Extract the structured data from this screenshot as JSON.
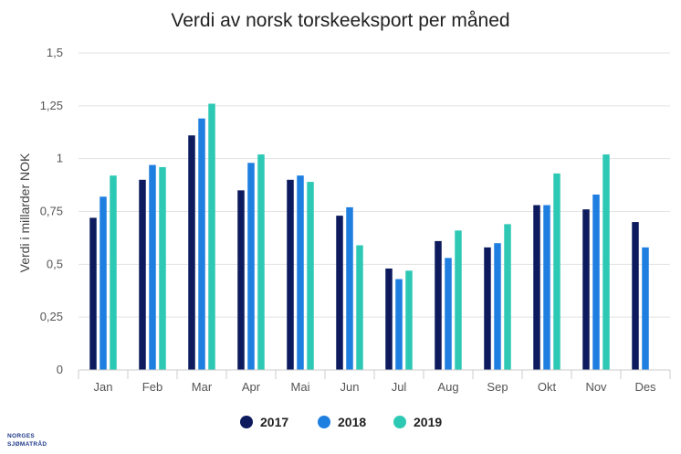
{
  "chart_data": {
    "type": "bar",
    "title": "Verdi av norsk torskeeksport per måned",
    "xlabel": "",
    "ylabel": "Verdi i millarder NOK",
    "ylim": [
      0,
      1.5
    ],
    "yticks": [
      0,
      0.25,
      0.5,
      0.75,
      1,
      1.25,
      1.5
    ],
    "ytick_labels": [
      "0",
      "0,25",
      "0,5",
      "0,75",
      "1",
      "1,25",
      "1,5"
    ],
    "grid": true,
    "legend_position": "bottom",
    "categories": [
      "Jan",
      "Feb",
      "Mar",
      "Apr",
      "Mai",
      "Jun",
      "Jul",
      "Aug",
      "Sep",
      "Okt",
      "Nov",
      "Des"
    ],
    "series": [
      {
        "name": "2017",
        "color": "#0d1b5e",
        "values": [
          0.72,
          0.9,
          1.11,
          0.85,
          0.9,
          0.73,
          0.48,
          0.61,
          0.58,
          0.78,
          0.76,
          0.7
        ]
      },
      {
        "name": "2018",
        "color": "#1f7fe0",
        "values": [
          0.82,
          0.97,
          1.19,
          0.98,
          0.92,
          0.77,
          0.43,
          0.53,
          0.6,
          0.78,
          0.83,
          0.58
        ]
      },
      {
        "name": "2019",
        "color": "#2ec9b5",
        "values": [
          0.92,
          0.96,
          1.26,
          1.02,
          0.89,
          0.59,
          0.47,
          0.66,
          0.69,
          0.93,
          1.02,
          null
        ]
      }
    ]
  },
  "logo": {
    "line1": "NORGES",
    "line2": "SJØMATRÅD"
  }
}
